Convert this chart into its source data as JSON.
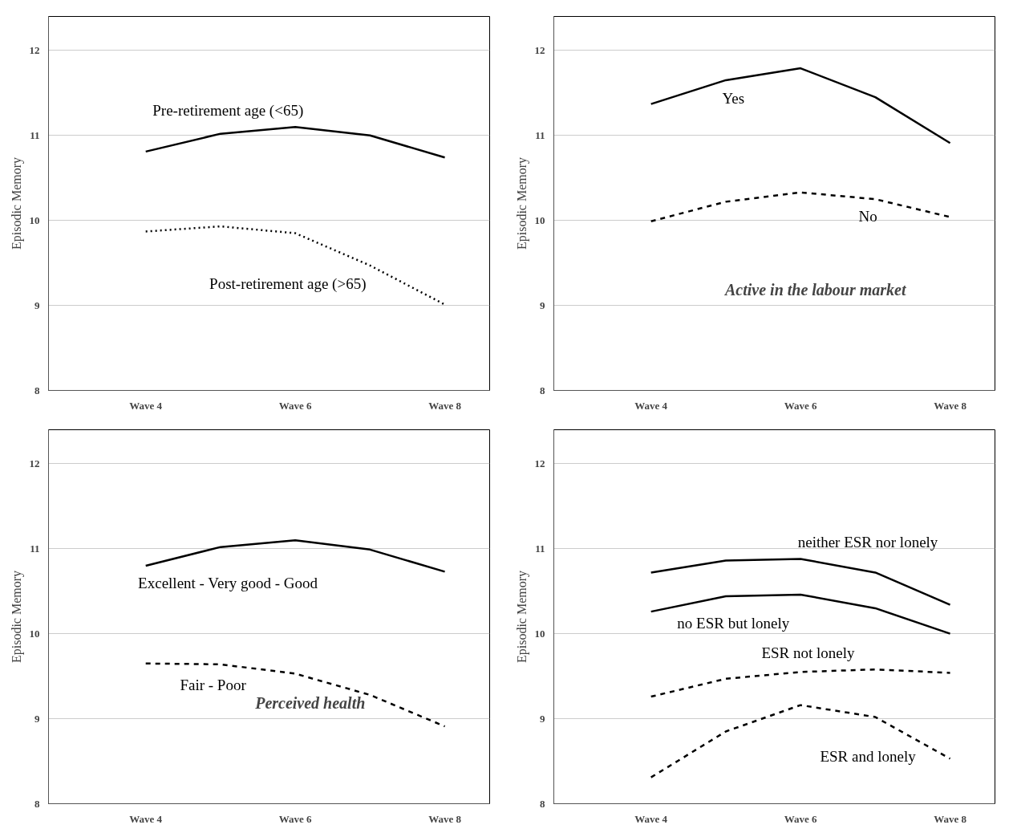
{
  "chart_data": [
    {
      "type": "line",
      "ylabel": "Episodic Memory",
      "categories": [
        "Wave 4",
        null,
        "Wave 6",
        null,
        "Wave 8"
      ],
      "ylim": [
        8,
        12.4
      ],
      "yticks": [
        8,
        9,
        10,
        11,
        12
      ],
      "grid": "y",
      "series": [
        {
          "name": "Pre-retirement age (<65)",
          "color": "#000000",
          "line_style": "solid",
          "values": [
            10.81,
            11.02,
            11.1,
            11.0,
            10.74
          ]
        },
        {
          "name": "Post-retirement age (>65)",
          "color": "#000000",
          "line_style": "dotted",
          "values": [
            9.87,
            9.93,
            9.85,
            9.47,
            9.01
          ]
        }
      ]
    },
    {
      "type": "line",
      "ylabel": "Episodic Memory",
      "categories": [
        "Wave 4",
        null,
        "Wave 6",
        null,
        "Wave 8"
      ],
      "ylim": [
        8,
        12.4
      ],
      "yticks": [
        8,
        9,
        10,
        11,
        12
      ],
      "grid": "y",
      "series": [
        {
          "name": "Yes",
          "color": "#000000",
          "line_style": "solid",
          "values": [
            11.37,
            11.65,
            11.79,
            11.45,
            10.91
          ]
        },
        {
          "name": "No",
          "color": "#000000",
          "line_style": "dashed",
          "values": [
            9.99,
            10.22,
            10.33,
            10.25,
            10.04
          ]
        }
      ],
      "annotations": [
        "Active in the labour market"
      ]
    },
    {
      "type": "line",
      "ylabel": "Episodic Memory",
      "categories": [
        "Wave 4",
        null,
        "Wave 6",
        null,
        "Wave 8"
      ],
      "ylim": [
        8,
        12.4
      ],
      "yticks": [
        8,
        9,
        10,
        11,
        12
      ],
      "grid": "y",
      "series": [
        {
          "name": "Excellent - Very good - Good",
          "color": "#000000",
          "line_style": "solid",
          "values": [
            10.8,
            11.02,
            11.1,
            10.99,
            10.73
          ]
        },
        {
          "name": "Fair - Poor",
          "color": "#000000",
          "line_style": "dashed",
          "values": [
            9.65,
            9.64,
            9.53,
            9.28,
            8.91
          ]
        }
      ],
      "annotations": [
        "Perceived health"
      ]
    },
    {
      "type": "line",
      "ylabel": "Episodic Memory",
      "categories": [
        "Wave 4",
        null,
        "Wave 6",
        null,
        "Wave 8"
      ],
      "ylim": [
        8,
        12.4
      ],
      "yticks": [
        8,
        9,
        10,
        11,
        12
      ],
      "grid": "y",
      "series": [
        {
          "name": "no ESR but lonely",
          "color": "#000000",
          "line_style": "solid",
          "values": [
            10.26,
            10.44,
            10.46,
            10.3,
            10.0
          ]
        },
        {
          "name": "neither ESR nor lonely",
          "color": "#000000",
          "line_style": "solid",
          "values": [
            10.72,
            10.86,
            10.88,
            10.72,
            10.34
          ]
        },
        {
          "name": "ESR not lonely",
          "color": "#000000",
          "line_style": "dashed",
          "values": [
            9.26,
            9.47,
            9.55,
            9.58,
            9.54
          ]
        },
        {
          "name": "ESR and lonely",
          "color": "#000000",
          "line_style": "dashed",
          "values": [
            8.31,
            8.85,
            9.16,
            9.02,
            8.53
          ]
        }
      ]
    }
  ]
}
